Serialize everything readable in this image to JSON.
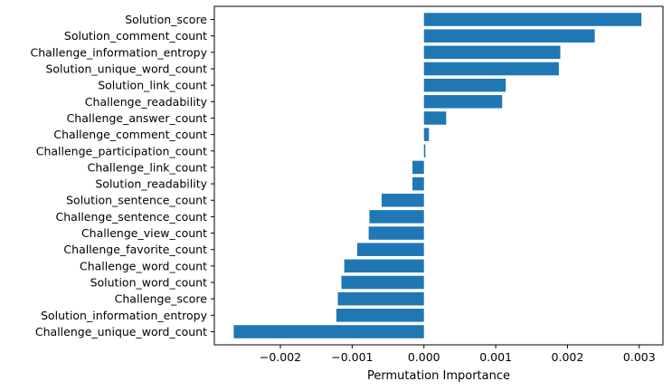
{
  "chart_data": {
    "type": "bar",
    "orientation": "horizontal",
    "categories": [
      "Solution_score",
      "Solution_comment_count",
      "Challenge_information_entropy",
      "Solution_unique_word_count",
      "Solution_link_count",
      "Challenge_readability",
      "Challenge_answer_count",
      "Challenge_comment_count",
      "Challenge_participation_count",
      "Challenge_link_count",
      "Solution_readability",
      "Solution_sentence_count",
      "Challenge_sentence_count",
      "Challenge_view_count",
      "Challenge_favorite_count",
      "Challenge_word_count",
      "Solution_word_count",
      "Challenge_score",
      "Solution_information_entropy",
      "Challenge_unique_word_count"
    ],
    "values": [
      0.00303,
      0.00238,
      0.0019,
      0.00188,
      0.00114,
      0.00109,
      0.00031,
      7e-05,
      2e-05,
      -0.00016,
      -0.00016,
      -0.00059,
      -0.00076,
      -0.00077,
      -0.00093,
      -0.00111,
      -0.00115,
      -0.0012,
      -0.00122,
      -0.00265
    ],
    "xlabel": "Permutation Importance",
    "ylabel": "",
    "title": "",
    "xlim": [
      -0.00292,
      0.00333
    ],
    "xticks": [
      -0.002,
      -0.001,
      0.0,
      0.001,
      0.002,
      0.003
    ],
    "xtick_labels": [
      "−0.002",
      "−0.001",
      "0.000",
      "0.001",
      "0.002",
      "0.003"
    ],
    "bar_color": "#1f77b4",
    "grid": false,
    "legend": "none"
  }
}
